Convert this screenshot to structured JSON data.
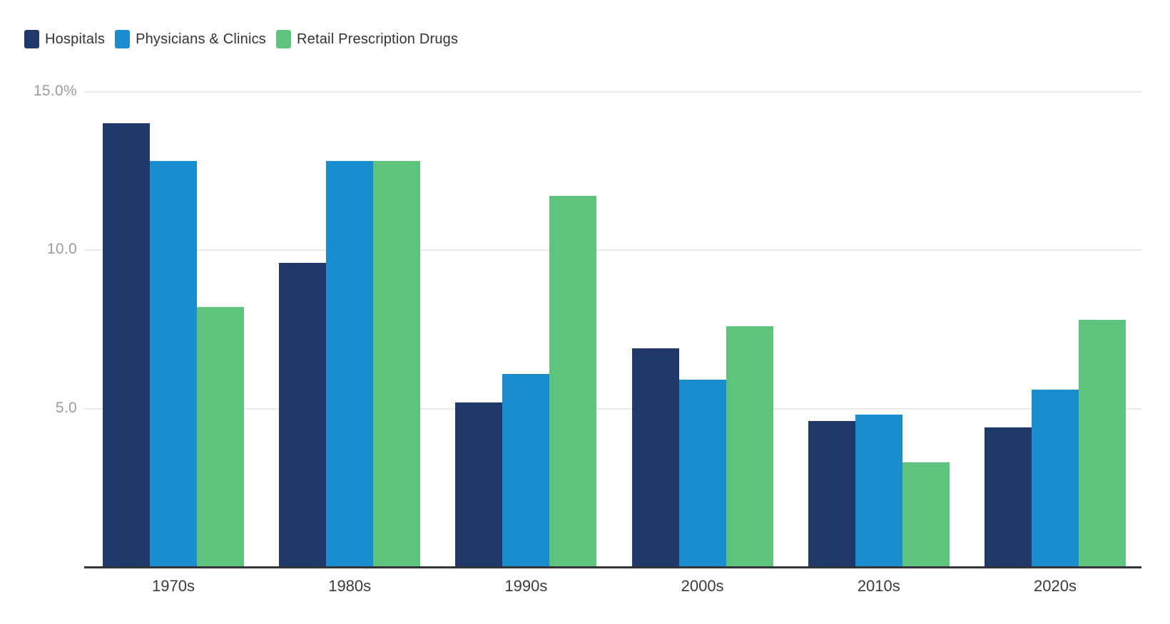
{
  "chart_data": {
    "type": "bar",
    "title": "",
    "categories": [
      "1970s",
      "1980s",
      "1990s",
      "2000s",
      "2010s",
      "2020s"
    ],
    "series": [
      {
        "name": "Hospitals",
        "color": "#21386A",
        "values": [
          14.0,
          9.6,
          5.2,
          6.9,
          4.6,
          4.4
        ]
      },
      {
        "name": "Physicians & Clinics",
        "color": "#1A8DCE",
        "values": [
          12.8,
          12.8,
          6.1,
          5.9,
          4.8,
          5.6
        ]
      },
      {
        "name": "Retail Prescription Drugs",
        "color": "#5EC47D",
        "values": [
          8.2,
          12.8,
          11.7,
          7.6,
          3.3,
          7.8
        ]
      }
    ],
    "unit": "%",
    "y_axis": {
      "min": 0,
      "max": 15.0,
      "ticks": [
        {
          "label": "15.0%",
          "value": 15.0
        },
        {
          "label": "10.0",
          "value": 10.0
        },
        {
          "label": "5.0",
          "value": 5.0
        }
      ]
    },
    "grid": true,
    "legend_position": "top-left"
  },
  "colors": {
    "background": "#FFFFFF",
    "gridline": "#EAEAEA",
    "axis_line": "#33353A",
    "y_tick_label": "#9B9B9B",
    "x_category_label": "#3A3A3A",
    "legend_text": "#333333"
  }
}
